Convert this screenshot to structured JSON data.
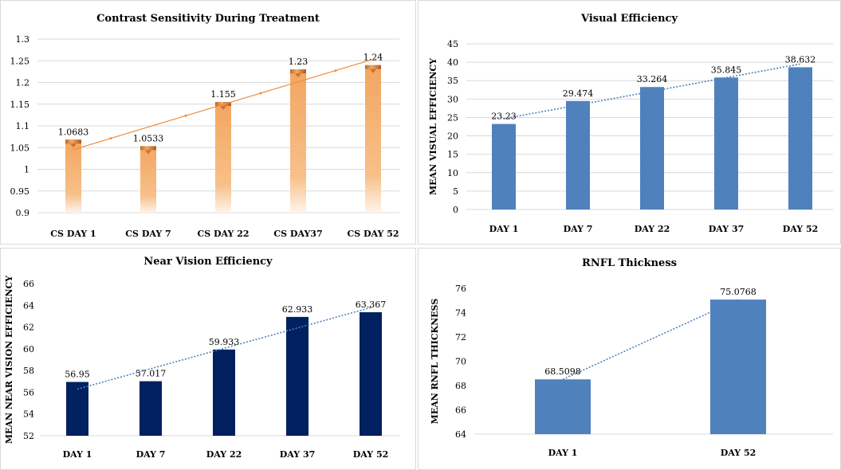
{
  "chart_data": [
    {
      "type": "bar",
      "title": "Contrast Sensitivity During Treatment",
      "categories": [
        "CS DAY 1",
        "CS DAY 7",
        "CS DAY 22",
        "CS DAY37",
        "CS DAY 52"
      ],
      "values": [
        1.0683,
        1.0533,
        1.155,
        1.23,
        1.24
      ],
      "data_labels": [
        "1.0683",
        "1.0533",
        "1.155",
        "1.23",
        "1.24"
      ],
      "ylim": [
        0.9,
        1.3
      ],
      "yticks": [
        "0.9",
        "0.95",
        "1",
        "1.05",
        "1.1",
        "1.15",
        "1.2",
        "1.25",
        "1.3"
      ],
      "ylabel": "",
      "trendline": true,
      "grid": true,
      "bar_color": "#f0a050",
      "trend_color": "#f08c3c"
    },
    {
      "type": "bar",
      "title": "Visual Efficiency",
      "categories": [
        "DAY 1",
        "DAY 7",
        "DAY 22",
        "DAY 37",
        "DAY 52"
      ],
      "values": [
        23.23,
        29.474,
        33.264,
        35.845,
        38.632
      ],
      "data_labels": [
        "23.23",
        "29.474",
        "33.264",
        "35.845",
        "38.632"
      ],
      "ylim": [
        0,
        45
      ],
      "yticks": [
        "0",
        "5",
        "10",
        "15",
        "20",
        "25",
        "30",
        "35",
        "40",
        "45"
      ],
      "ylabel": "MEAN VISUAL EFFICIENCY",
      "trendline": true,
      "grid": true,
      "bar_color": "#4f81bd",
      "trend_color": "#4f81bd"
    },
    {
      "type": "bar",
      "title": "Near Vision Efficiency",
      "categories": [
        "DAY 1",
        "DAY 7",
        "DAY 22",
        "DAY 37",
        "DAY 52"
      ],
      "values": [
        56.95,
        57.017,
        59.933,
        62.933,
        63.367
      ],
      "data_labels": [
        "56.95",
        "57.017",
        "59.933",
        "62.933",
        "63.367"
      ],
      "ylim": [
        52,
        66
      ],
      "yticks": [
        "52",
        "54",
        "56",
        "58",
        "60",
        "62",
        "64",
        "66"
      ],
      "ylabel": "MEAN NEAR VISION EFFICIENCY",
      "trendline": true,
      "grid": false,
      "bar_color": "#002060",
      "trend_color": "#4f81bd"
    },
    {
      "type": "bar",
      "title": "RNFL Thickness",
      "categories": [
        "DAY 1",
        "DAY 52"
      ],
      "values": [
        68.5098,
        75.0768
      ],
      "data_labels": [
        "68.5098",
        "75.0768"
      ],
      "ylim": [
        64,
        76
      ],
      "yticks": [
        "64",
        "66",
        "68",
        "70",
        "72",
        "74",
        "76"
      ],
      "ylabel": "MEAN RNFL THICKNESS",
      "trendline": true,
      "grid": false,
      "bar_color": "#4f81bd",
      "trend_color": "#4f81bd"
    }
  ]
}
